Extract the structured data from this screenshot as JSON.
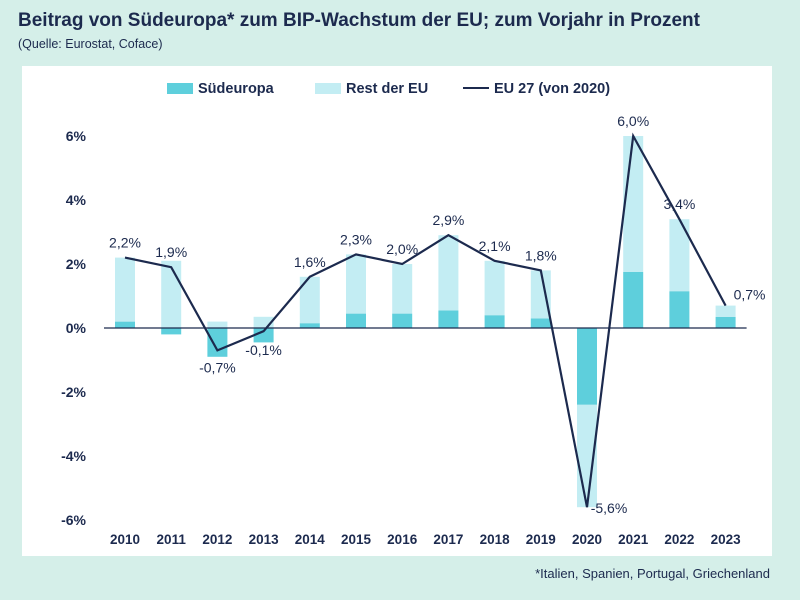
{
  "title": "Beitrag von Südeuropa* zum BIP-Wachstum der EU; zum Vorjahr in Prozent",
  "subtitle": "(Quelle: Eurostat, Coface)",
  "footnote": "*Italien, Spanien, Portugal, Griechenland",
  "colors": {
    "south": "#5ecfdc",
    "rest": "#c3edf3",
    "line": "#1c2a4e",
    "zero": "#1c2a4e",
    "background": "#d5efe9"
  },
  "chart_data": {
    "type": "bar",
    "stacked": true,
    "title": "Beitrag von Südeuropa* zum BIP-Wachstum der EU; zum Vorjahr in Prozent",
    "categories": [
      "2010",
      "2011",
      "2012",
      "2013",
      "2014",
      "2015",
      "2016",
      "2017",
      "2018",
      "2019",
      "2020",
      "2021",
      "2022",
      "2023"
    ],
    "series": [
      {
        "name": "Südeuropa",
        "kind": "bar",
        "values": [
          0.2,
          -0.2,
          -0.9,
          -0.45,
          0.15,
          0.45,
          0.45,
          0.55,
          0.4,
          0.3,
          -2.4,
          1.75,
          1.15,
          0.35
        ]
      },
      {
        "name": "Rest der EU",
        "kind": "bar",
        "values": [
          2.0,
          2.1,
          0.2,
          0.35,
          1.45,
          1.85,
          1.55,
          2.35,
          1.7,
          1.5,
          -3.2,
          4.25,
          2.25,
          0.35
        ]
      },
      {
        "name": "EU 27 (von 2020)",
        "kind": "line",
        "values": [
          2.2,
          1.9,
          -0.7,
          -0.1,
          1.6,
          2.3,
          2.0,
          2.9,
          2.1,
          1.8,
          -5.6,
          6.0,
          3.4,
          0.7
        ]
      }
    ],
    "data_labels": [
      "2,2%",
      "1,9%",
      "-0,7%",
      "-0,1%",
      "1,6%",
      "2,3%",
      "2,0%",
      "2,9%",
      "2,1%",
      "1,8%",
      "-5,6%",
      "6,0%",
      "3,4%",
      "0,7%"
    ],
    "yticks": [
      6,
      4,
      2,
      0,
      -2,
      -4,
      -6
    ],
    "ytick_labels": [
      "6%",
      "4%",
      "2%",
      "0%",
      "-2%",
      "-4%",
      "-6%"
    ],
    "ylim": [
      -6,
      6
    ],
    "xlabel": "",
    "ylabel": "",
    "grid": false,
    "legend_position": "top"
  }
}
